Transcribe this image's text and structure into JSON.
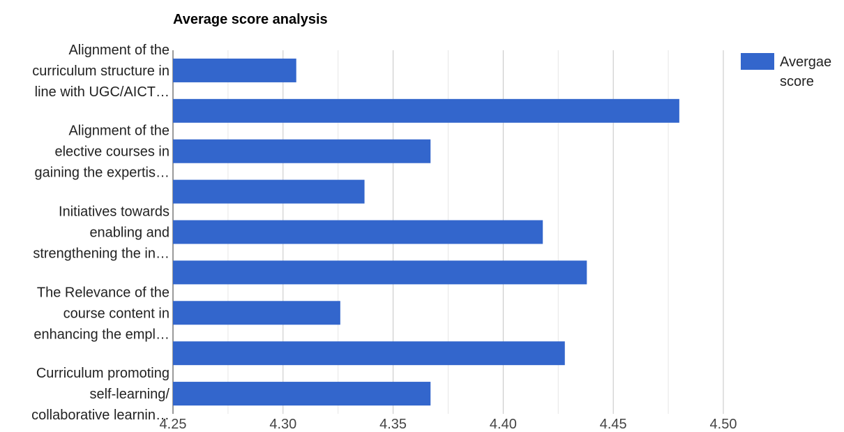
{
  "chart_data": {
    "type": "bar",
    "orientation": "horizontal",
    "title": "Average score analysis",
    "categories": [
      "Alignment of the curriculum structure in line with UGC/AICT…",
      "",
      "Alignment of the elective courses in gaining the expertis…",
      "",
      "Initiatives towards enabling and strengthening the in…",
      "",
      "The Relevance of the course content in enhancing the empl…",
      "",
      "Curriculum promoting self-learning/ collaborative learnin…"
    ],
    "category_label_lines": [
      [
        "Alignment of the",
        "curriculum structure in",
        "line with UGC/AICT…"
      ],
      [],
      [
        "Alignment of the",
        "elective courses in",
        "gaining the expertis…"
      ],
      [],
      [
        "Initiatives towards",
        "enabling and",
        "strengthening the in…"
      ],
      [],
      [
        "The Relevance of the",
        "course content in",
        "enhancing the empl…"
      ],
      [],
      [
        "Curriculum promoting",
        "self-learning/",
        "collaborative learnin…"
      ]
    ],
    "series": [
      {
        "name": "Avergae score",
        "color": "#3366cc",
        "values": [
          4.306,
          4.48,
          4.367,
          4.337,
          4.418,
          4.438,
          4.326,
          4.428,
          4.367
        ]
      }
    ],
    "legend": {
      "position": "right",
      "label_lines": [
        "Avergae",
        "score"
      ]
    },
    "xlim": [
      4.25,
      4.52
    ],
    "xticks": [
      "4.25",
      "4.30",
      "4.35",
      "4.40",
      "4.45",
      "4.50"
    ],
    "xtick_values": [
      4.25,
      4.3,
      4.35,
      4.4,
      4.45,
      4.5
    ],
    "minor_xtick_values": [
      4.275,
      4.325,
      4.375,
      4.425,
      4.475,
      4.525
    ],
    "grid": true
  }
}
